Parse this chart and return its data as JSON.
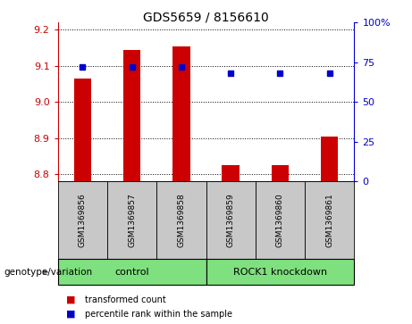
{
  "title": "GDS5659 / 8156610",
  "samples": [
    "GSM1369856",
    "GSM1369857",
    "GSM1369858",
    "GSM1369859",
    "GSM1369860",
    "GSM1369861"
  ],
  "red_values": [
    9.065,
    9.145,
    9.155,
    8.825,
    8.825,
    8.905
  ],
  "blue_values": [
    72,
    72,
    72,
    68,
    68,
    68
  ],
  "ylim_left": [
    8.78,
    9.22
  ],
  "ylim_right": [
    0,
    100
  ],
  "yticks_left": [
    8.8,
    8.9,
    9.0,
    9.1,
    9.2
  ],
  "yticks_right": [
    0,
    25,
    50,
    75,
    100
  ],
  "red_color": "#CC0000",
  "blue_color": "#0000CC",
  "bar_width": 0.35,
  "group_label": "genotype/variation",
  "legend_red": "transformed count",
  "legend_blue": "percentile rank within the sample",
  "tick_color_left": "#CC0000",
  "tick_color_right": "#0000CC",
  "gray_bg": "#C8C8C8",
  "green_bg": "#7EE07E"
}
